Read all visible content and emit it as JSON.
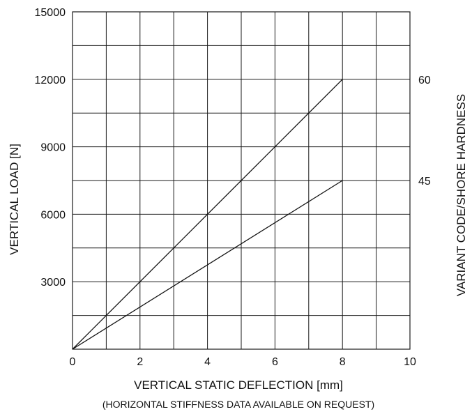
{
  "chart_data": {
    "type": "line",
    "xlabel": "VERTICAL STATIC DEFLECTION [mm]",
    "note": "(HORIZONTAL STIFFNESS DATA AVAILABLE ON REQUEST)",
    "ylabel": "VERTICAL LOAD [N]",
    "y2label": "VARIANT CODE/SHORE HARDNESS",
    "xlim": [
      0,
      10
    ],
    "ylim": [
      0,
      15000
    ],
    "x_gridlines": [
      0,
      1,
      2,
      3,
      4,
      5,
      6,
      7,
      8,
      9,
      10
    ],
    "y_gridlines": [
      0,
      1500,
      3000,
      4500,
      6000,
      7500,
      9000,
      10500,
      12000,
      13500,
      15000
    ],
    "x_tick_labels": [
      "0",
      "2",
      "4",
      "6",
      "8",
      "10"
    ],
    "x_tick_values": [
      0,
      2,
      4,
      6,
      8,
      10
    ],
    "y_tick_labels": [
      "3000",
      "6000",
      "9000",
      "12000",
      "15000"
    ],
    "y_tick_values": [
      3000,
      6000,
      9000,
      12000,
      15000
    ],
    "grid": true,
    "series": [
      {
        "name": "60",
        "x": [
          0,
          8
        ],
        "y": [
          0,
          12000
        ]
      },
      {
        "name": "45",
        "x": [
          0,
          8
        ],
        "y": [
          0,
          7500
        ]
      }
    ]
  }
}
